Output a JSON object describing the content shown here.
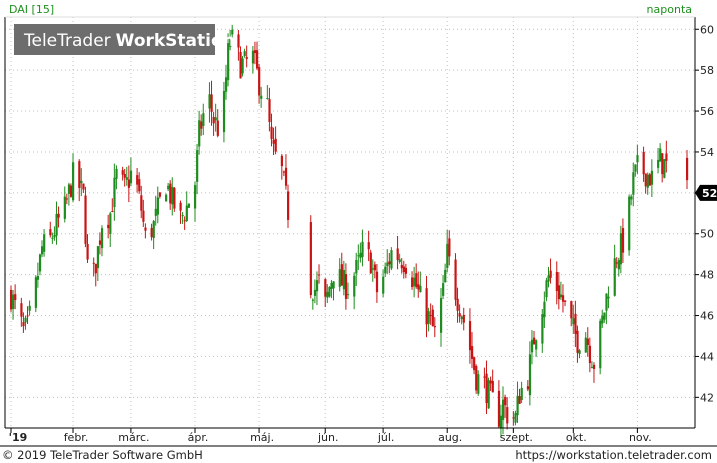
{
  "header": {
    "symbol": "DAI [15]",
    "interval": "naponta"
  },
  "logo": {
    "part1": "TeleTrader",
    "part2": "WorkStation"
  },
  "footer": {
    "copyright": "© 2019 TeleTrader Software GmbH",
    "url": "https://workstation.teletrader.com"
  },
  "colors": {
    "up": "#1e8c1e",
    "down": "#c81414",
    "grid": "#bfbfbf",
    "axis": "#000000"
  },
  "chart_data": {
    "type": "candlestick",
    "ylim": [
      40.5,
      60.6
    ],
    "y_ticks": [
      42,
      44,
      46,
      48,
      50,
      52,
      54,
      56,
      58,
      60
    ],
    "last_value_label": "52",
    "last_value": 52.0,
    "months": [
      "'19",
      "febr.",
      "márc.",
      "ápr.",
      "máj.",
      "jún.",
      "júl.",
      "aug.",
      "szept.",
      "okt.",
      "nov."
    ],
    "dates": {
      "start": "2019-01-02",
      "end": "2019-11-25"
    },
    "gaps": [
      {
        "from": "2019-05-17",
        "to": "2019-05-24"
      },
      {
        "from": "2019-11-18",
        "to": "2019-11-22"
      }
    ],
    "close_path": [
      [
        "2019-01-02",
        47.0
      ],
      [
        "2019-01-04",
        46.4
      ],
      [
        "2019-01-08",
        45.2
      ],
      [
        "2019-01-10",
        45.4
      ],
      [
        "2019-01-14",
        47.4
      ],
      [
        "2019-01-17",
        49.3
      ],
      [
        "2019-01-21",
        49.7
      ],
      [
        "2019-01-24",
        50.4
      ],
      [
        "2019-01-28",
        51.2
      ],
      [
        "2019-01-30",
        52.0
      ],
      [
        "2019-02-01",
        52.8
      ],
      [
        "2019-02-04",
        52.3
      ],
      [
        "2019-02-06",
        51.8
      ],
      [
        "2019-02-08",
        48.4
      ],
      [
        "2019-02-11",
        48.0
      ],
      [
        "2019-02-13",
        49.2
      ],
      [
        "2019-02-15",
        50.6
      ],
      [
        "2019-02-19",
        51.0
      ],
      [
        "2019-02-22",
        52.8
      ],
      [
        "2019-02-26",
        52.2
      ],
      [
        "2019-03-01",
        52.9
      ],
      [
        "2019-03-04",
        52.2
      ],
      [
        "2019-03-06",
        51.2
      ],
      [
        "2019-03-08",
        49.8
      ],
      [
        "2019-03-12",
        50.4
      ],
      [
        "2019-03-15",
        51.5
      ],
      [
        "2019-03-18",
        52.5
      ],
      [
        "2019-03-21",
        51.6
      ],
      [
        "2019-03-25",
        50.7
      ],
      [
        "2019-03-28",
        51.3
      ],
      [
        "2019-04-01",
        52.5
      ],
      [
        "2019-04-03",
        54.9
      ],
      [
        "2019-04-05",
        55.8
      ],
      [
        "2019-04-08",
        56.5
      ],
      [
        "2019-04-10",
        55.6
      ],
      [
        "2019-04-12",
        55.2
      ],
      [
        "2019-04-15",
        56.4
      ],
      [
        "2019-04-17",
        58.8
      ],
      [
        "2019-04-18",
        59.7
      ],
      [
        "2019-04-23",
        58.3
      ],
      [
        "2019-04-25",
        58.3
      ],
      [
        "2019-04-29",
        58.6
      ],
      [
        "2019-05-02",
        57.4
      ],
      [
        "2019-05-06",
        56.2
      ],
      [
        "2019-05-08",
        54.2
      ],
      [
        "2019-05-10",
        53.7
      ],
      [
        "2019-05-13",
        53.0
      ],
      [
        "2019-05-16",
        51.1
      ],
      [
        "2019-05-27",
        47.5
      ],
      [
        "2019-05-29",
        47.3
      ],
      [
        "2019-05-31",
        47.6
      ],
      [
        "2019-06-03",
        46.5
      ],
      [
        "2019-06-05",
        47.4
      ],
      [
        "2019-06-07",
        48.2
      ],
      [
        "2019-06-11",
        47.6
      ],
      [
        "2019-06-14",
        47.4
      ],
      [
        "2019-06-18",
        48.2
      ],
      [
        "2019-06-21",
        49.1
      ],
      [
        "2019-06-25",
        48.7
      ],
      [
        "2019-06-28",
        47.2
      ],
      [
        "2019-07-02",
        48.1
      ],
      [
        "2019-07-05",
        49.1
      ],
      [
        "2019-07-09",
        48.9
      ],
      [
        "2019-07-12",
        48.6
      ],
      [
        "2019-07-16",
        47.7
      ],
      [
        "2019-07-19",
        46.8
      ],
      [
        "2019-07-23",
        45.9
      ],
      [
        "2019-07-26",
        45.1
      ],
      [
        "2019-07-30",
        47.1
      ],
      [
        "2019-08-01",
        49.0
      ],
      [
        "2019-08-05",
        47.2
      ],
      [
        "2019-08-08",
        46.2
      ],
      [
        "2019-08-12",
        44.4
      ],
      [
        "2019-08-15",
        43.0
      ],
      [
        "2019-08-19",
        42.6
      ],
      [
        "2019-08-22",
        42.0
      ],
      [
        "2019-08-26",
        41.1
      ],
      [
        "2019-08-28",
        41.7
      ],
      [
        "2019-08-30",
        41.2
      ],
      [
        "2019-09-03",
        41.0
      ],
      [
        "2019-09-05",
        42.2
      ],
      [
        "2019-09-09",
        43.0
      ],
      [
        "2019-09-12",
        44.9
      ],
      [
        "2019-09-16",
        46.6
      ],
      [
        "2019-09-19",
        47.9
      ],
      [
        "2019-09-23",
        47.4
      ],
      [
        "2019-09-26",
        46.7
      ],
      [
        "2019-09-30",
        45.5
      ],
      [
        "2019-10-03",
        44.8
      ],
      [
        "2019-10-07",
        45.1
      ],
      [
        "2019-10-09",
        44.3
      ],
      [
        "2019-10-11",
        43.7
      ],
      [
        "2019-10-15",
        45.7
      ],
      [
        "2019-10-18",
        47.5
      ],
      [
        "2019-10-22",
        48.9
      ],
      [
        "2019-10-25",
        49.6
      ],
      [
        "2019-10-28",
        51.2
      ],
      [
        "2019-10-30",
        52.6
      ],
      [
        "2019-11-01",
        53.2
      ],
      [
        "2019-11-05",
        53.0
      ],
      [
        "2019-11-08",
        52.7
      ],
      [
        "2019-11-12",
        53.6
      ],
      [
        "2019-11-15",
        53.3
      ],
      [
        "2019-11-25",
        52.0
      ]
    ]
  }
}
